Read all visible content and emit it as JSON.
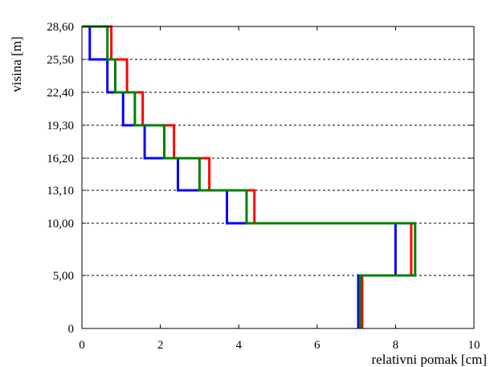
{
  "chart_data": {
    "type": "line",
    "xlabel": "relativni pomak [cm]",
    "ylabel": "visina [m]",
    "xlim": [
      0,
      10
    ],
    "x_ticks": [
      "0",
      "2",
      "4",
      "6",
      "8",
      "10"
    ],
    "x_tick_values": [
      0,
      2,
      4,
      6,
      8,
      10
    ],
    "y_ticks": [
      "0",
      "5,00",
      "10,00",
      "13,10",
      "16,20",
      "19,30",
      "22,40",
      "25,50",
      "28,60"
    ],
    "y_tick_values": [
      0,
      5.0,
      10.0,
      13.1,
      16.2,
      19.3,
      22.4,
      25.5,
      28.6
    ],
    "grid": "horizontal dashed at y ticks 5,00 to 28,60",
    "series": [
      {
        "color": "#0000ff",
        "step_values": [
          7.05,
          8.0,
          3.7,
          2.45,
          1.6,
          1.05,
          0.65,
          0.2
        ]
      },
      {
        "color": "#ff0000",
        "step_values": [
          7.15,
          8.4,
          4.4,
          3.25,
          2.35,
          1.55,
          1.15,
          0.75
        ]
      },
      {
        "color": "#008000",
        "step_values": [
          7.1,
          8.5,
          4.2,
          3.0,
          2.1,
          1.35,
          0.85,
          0.65
        ]
      }
    ]
  }
}
